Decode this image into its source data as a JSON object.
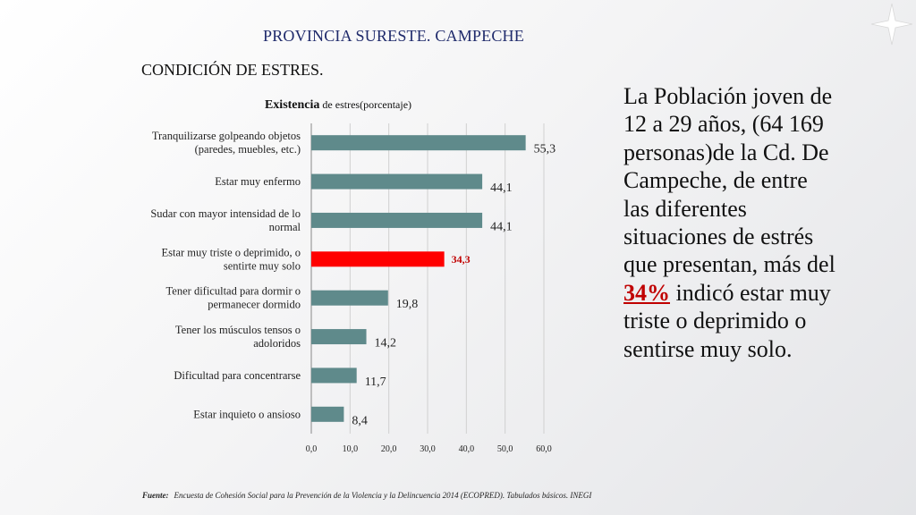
{
  "slide": {
    "title": "PROVINCIA SURESTE. CAMPECHE",
    "subtitle": "CONDICIÓN DE ESTRES.",
    "side_text_before": "La Población joven de 12 a 29 años, (64 169 personas)de la Cd. De Campeche, de entre las diferentes situaciones de estrés que presentan, más del ",
    "side_text_highlight": "34%",
    "side_text_after": " indicó estar muy triste o deprimido o sentirse muy solo.",
    "footnote_label": "Fuente:",
    "footnote_text": "Encuesta de Cohesión Social para la Prevención de la Violencia y la Delincuencia 2014 (ECOPRED). Tabulados básicos. INEGI"
  },
  "chart_data": {
    "type": "bar",
    "orientation": "horizontal",
    "title_bold": "Existencia",
    "title_rest": " de estres(porcentaje)",
    "categories": [
      [
        "Tranquilizarse golpeando objetos",
        "(paredes, muebles, etc.)"
      ],
      [
        "Estar muy enfermo"
      ],
      [
        "Sudar con mayor intensidad de lo",
        "normal"
      ],
      [
        "Estar muy triste o deprimido, o",
        "sentirte muy solo"
      ],
      [
        "Tener dificultad para dormir o",
        "permanecer dormido"
      ],
      [
        "Tener los músculos tensos o",
        "adoloridos"
      ],
      [
        "Dificultad para concentrarse"
      ],
      [
        "Estar inquieto o ansioso"
      ]
    ],
    "values": [
      55.3,
      44.1,
      44.1,
      34.3,
      19.8,
      14.2,
      11.7,
      8.4
    ],
    "value_labels": [
      "55,3",
      "44,1",
      "44,1",
      "34,3",
      "19,8",
      "14,2",
      "11,7",
      "8,4"
    ],
    "highlight_index": 3,
    "xlim": [
      0,
      60
    ],
    "xticks": [
      "0,0",
      "10,0",
      "20,0",
      "30,0",
      "40,0",
      "50,0",
      "60,0"
    ],
    "grid": true,
    "colors": {
      "bar": "#5f8a8b",
      "highlight": "#ff0000",
      "highlight_label": "#c00000",
      "grid": "#d0d0d0"
    }
  }
}
